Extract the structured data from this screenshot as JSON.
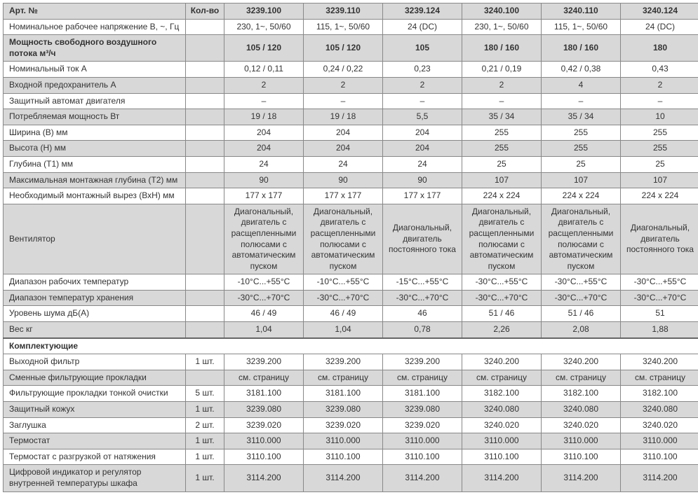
{
  "colors": {
    "gray_bg": "#d8d8d8",
    "border": "#888888",
    "text": "#333333"
  },
  "columns": {
    "label_width": 260,
    "qty_width": 55,
    "val_width": 113
  },
  "header": {
    "art": "Арт. №",
    "qty": "Кол-во",
    "products": [
      "3239.100",
      "3239.110",
      "3239.124",
      "3240.100",
      "3240.110",
      "3240.124"
    ]
  },
  "spec_rows": [
    {
      "gray": false,
      "label": "Номинальное рабочее напряжение В, ~, Гц",
      "qty": "",
      "vals": [
        "230, 1~, 50/60",
        "115, 1~, 50/60",
        "24 (DC)",
        "230, 1~, 50/60",
        "115, 1~, 50/60",
        "24 (DC)"
      ]
    },
    {
      "gray": true,
      "bold": true,
      "label": "Мощность свободного воздушного потока м³/ч",
      "qty": "",
      "vals": [
        "105 / 120",
        "105 / 120",
        "105",
        "180 / 160",
        "180 / 160",
        "180"
      ]
    },
    {
      "gray": false,
      "label": "Номинальный ток А",
      "qty": "",
      "vals": [
        "0,12 / 0,11",
        "0,24 / 0,22",
        "0,23",
        "0,21 / 0,19",
        "0,42 / 0,38",
        "0,43"
      ]
    },
    {
      "gray": true,
      "label": "Входной предохранитель А",
      "qty": "",
      "vals": [
        "2",
        "2",
        "2",
        "2",
        "4",
        "2"
      ]
    },
    {
      "gray": false,
      "label": "Защитный автомат двигателя",
      "qty": "",
      "vals": [
        "–",
        "–",
        "–",
        "–",
        "–",
        "–"
      ]
    },
    {
      "gray": true,
      "label": "Потребляемая мощность Вт",
      "qty": "",
      "vals": [
        "19 / 18",
        "19 / 18",
        "5,5",
        "35 / 34",
        "35 / 34",
        "10"
      ]
    },
    {
      "gray": false,
      "label": "Ширина (В) мм",
      "qty": "",
      "vals": [
        "204",
        "204",
        "204",
        "255",
        "255",
        "255"
      ]
    },
    {
      "gray": true,
      "label": "Высота (Н) мм",
      "qty": "",
      "vals": [
        "204",
        "204",
        "204",
        "255",
        "255",
        "255"
      ]
    },
    {
      "gray": false,
      "label": "Глубина (Т1) мм",
      "qty": "",
      "vals": [
        "24",
        "24",
        "24",
        "25",
        "25",
        "25"
      ]
    },
    {
      "gray": true,
      "label": "Максимальная монтажная глубина (Т2) мм",
      "qty": "",
      "vals": [
        "90",
        "90",
        "90",
        "107",
        "107",
        "107"
      ]
    },
    {
      "gray": false,
      "label": "Необходимый монтажный вырез (ВхН) мм",
      "qty": "",
      "vals": [
        "177 x 177",
        "177 x 177",
        "177 x 177",
        "224 x 224",
        "224 x 224",
        "224 x 224"
      ]
    },
    {
      "gray": true,
      "label": "Вентилятор",
      "qty": "",
      "tall": true,
      "vals": [
        "Диагональ­ный, двига­тель с расще­пленными полюсами с автоматиче­ским пуском",
        "Диагональ­ный, двига­тель с расще­пленными полюсами с автоматиче­ским пуском",
        "Диагональ­ный, двигатель постоянного тока",
        "Диагональ­ный, двига­тель с расще­пленными полюсами с автоматиче­ским пуском",
        "Диагональ­ный, двига­тель с расще­пленными полюсами с автоматиче­ским пуском",
        "Диагональ­ный, двигатель постоянного тока"
      ]
    },
    {
      "gray": false,
      "label": "Диапазон рабочих температур",
      "qty": "",
      "vals": [
        "-10°C...+55°C",
        "-10°C...+55°C",
        "-15°C...+55°C",
        "-30°C...+55°C",
        "-30°C...+55°C",
        "-30°C...+55°C"
      ]
    },
    {
      "gray": true,
      "label": "Диапазон температур хранения",
      "qty": "",
      "vals": [
        "-30°C...+70°C",
        "-30°C...+70°C",
        "-30°C...+70°C",
        "-30°C...+70°C",
        "-30°C...+70°C",
        "-30°C...+70°C"
      ]
    },
    {
      "gray": false,
      "label": "Уровень шума дБ(А)",
      "qty": "",
      "vals": [
        "46 / 49",
        "46 / 49",
        "46",
        "51 / 46",
        "51 / 46",
        "51"
      ]
    },
    {
      "gray": true,
      "label": "Вес кг",
      "qty": "",
      "vals": [
        "1,04",
        "1,04",
        "0,78",
        "2,26",
        "2,08",
        "1,88"
      ]
    }
  ],
  "accessories_title": "Комплектующие",
  "accessory_rows": [
    {
      "gray": false,
      "label": "Выходной фильтр",
      "qty": "1 шт.",
      "vals": [
        "3239.200",
        "3239.200",
        "3239.200",
        "3240.200",
        "3240.200",
        "3240.200"
      ]
    },
    {
      "gray": true,
      "label": "Сменные фильтрующие прокладки",
      "qty": "",
      "vals": [
        "см. страницу",
        "см. страницу",
        "см. страницу",
        "см. страницу",
        "см. страницу",
        "см. страницу"
      ]
    },
    {
      "gray": false,
      "label": "Фильтрующие прокладки тонкой очистки",
      "qty": "5 шт.",
      "vals": [
        "3181.100",
        "3181.100",
        "3181.100",
        "3182.100",
        "3182.100",
        "3182.100"
      ]
    },
    {
      "gray": true,
      "label": "Защитный кожух",
      "qty": "1 шт.",
      "vals": [
        "3239.080",
        "3239.080",
        "3239.080",
        "3240.080",
        "3240.080",
        "3240.080"
      ]
    },
    {
      "gray": false,
      "label": "Заглушка",
      "qty": "2 шт.",
      "vals": [
        "3239.020",
        "3239.020",
        "3239.020",
        "3240.020",
        "3240.020",
        "3240.020"
      ]
    },
    {
      "gray": true,
      "label": "Термостат",
      "qty": "1 шт.",
      "vals": [
        "3110.000",
        "3110.000",
        "3110.000",
        "3110.000",
        "3110.000",
        "3110.000"
      ]
    },
    {
      "gray": false,
      "label": "Термостат с разгрузкой от натяжения",
      "qty": "1 шт.",
      "vals": [
        "3110.100",
        "3110.100",
        "3110.100",
        "3110.100",
        "3110.100",
        "3110.100"
      ]
    },
    {
      "gray": true,
      "label": "Цифровой индикатор и регулятор внутренней температуры шкафа",
      "qty": "1 шт.",
      "vals": [
        "3114.200",
        "3114.200",
        "3114.200",
        "3114.200",
        "3114.200",
        "3114.200"
      ]
    }
  ]
}
